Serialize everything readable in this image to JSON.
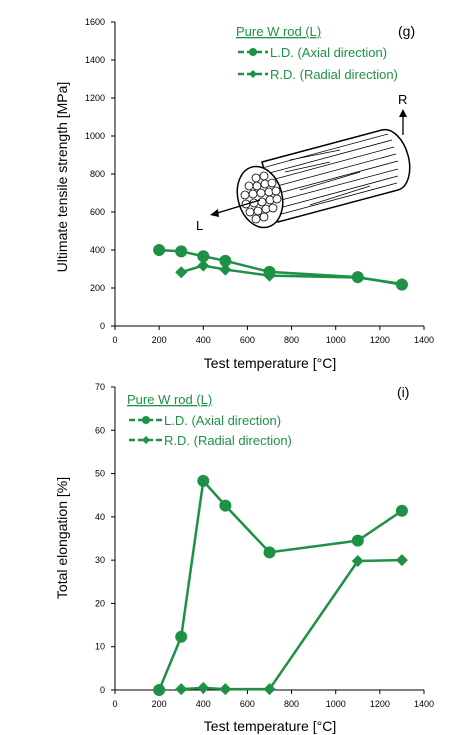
{
  "colors": {
    "series": "#1e9146",
    "axis": "#000000"
  },
  "chart_data": [
    {
      "type": "line",
      "panel_label": "(g)",
      "xlabel": "Test temperature [°C]",
      "ylabel": "Ultimate tensile strength [MPa]",
      "xlim": [
        0,
        1400
      ],
      "ylim": [
        0,
        1600
      ],
      "xticks": [
        0,
        200,
        400,
        600,
        800,
        1000,
        1200,
        1400
      ],
      "yticks": [
        0,
        200,
        400,
        600,
        800,
        1000,
        1200,
        1400,
        1600
      ],
      "legend_title": "Pure W rod (L)",
      "grid": false,
      "illustration_labels": {
        "radial": "R",
        "longitudinal": "L"
      },
      "series": [
        {
          "name": "L.D. (Axial direction)",
          "marker": "circle",
          "x": [
            200,
            300,
            400,
            500,
            700,
            1100,
            1300
          ],
          "y": [
            400,
            393,
            367,
            343,
            285,
            257,
            218
          ]
        },
        {
          "name": "R.D. (Radial direction)",
          "marker": "diamond",
          "x": [
            300,
            400,
            500,
            700,
            1100,
            1300
          ],
          "y": [
            283,
            318,
            297,
            265,
            255,
            222
          ]
        }
      ]
    },
    {
      "type": "line",
      "panel_label": "(i)",
      "xlabel": "Test temperature [°C]",
      "ylabel": "Total elongation [%]",
      "xlim": [
        0,
        1400
      ],
      "ylim": [
        0,
        70
      ],
      "xticks": [
        0,
        200,
        400,
        600,
        800,
        1000,
        1200,
        1400
      ],
      "yticks": [
        0,
        10,
        20,
        30,
        40,
        50,
        60,
        70
      ],
      "legend_title": "Pure W rod (L)",
      "grid": false,
      "series": [
        {
          "name": "L.D. (Axial direction)",
          "marker": "circle",
          "x": [
            200,
            300,
            400,
            500,
            700,
            1100,
            1300
          ],
          "y": [
            0,
            12.3,
            48.3,
            42.6,
            31.8,
            34.5,
            41.4
          ]
        },
        {
          "name": "R.D. (Radial direction)",
          "marker": "diamond",
          "x": [
            300,
            400,
            500,
            700,
            1100,
            1300
          ],
          "y": [
            0.2,
            0.5,
            0.2,
            0.2,
            29.8,
            30.0
          ]
        }
      ]
    }
  ]
}
